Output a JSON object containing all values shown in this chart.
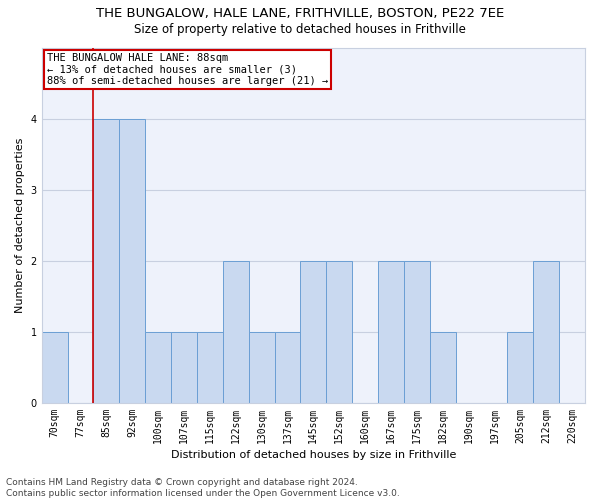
{
  "title1": "THE BUNGALOW, HALE LANE, FRITHVILLE, BOSTON, PE22 7EE",
  "title2": "Size of property relative to detached houses in Frithville",
  "xlabel": "Distribution of detached houses by size in Frithville",
  "ylabel": "Number of detached properties",
  "bins": [
    "70sqm",
    "77sqm",
    "85sqm",
    "92sqm",
    "100sqm",
    "107sqm",
    "115sqm",
    "122sqm",
    "130sqm",
    "137sqm",
    "145sqm",
    "152sqm",
    "160sqm",
    "167sqm",
    "175sqm",
    "182sqm",
    "190sqm",
    "197sqm",
    "205sqm",
    "212sqm",
    "220sqm"
  ],
  "values": [
    1,
    0,
    4,
    4,
    1,
    1,
    1,
    2,
    1,
    1,
    2,
    2,
    0,
    2,
    2,
    1,
    0,
    0,
    1,
    2,
    0
  ],
  "bar_color": "#c9d9f0",
  "bar_edge_color": "#6b9fd4",
  "highlight_line_color": "#cc0000",
  "highlight_bin_index": 2,
  "annotation_text": "THE BUNGALOW HALE LANE: 88sqm\n← 13% of detached houses are smaller (3)\n88% of semi-detached houses are larger (21) →",
  "annotation_box_color": "#ffffff",
  "annotation_box_edge_color": "#cc0000",
  "ylim": [
    0,
    5
  ],
  "yticks": [
    0,
    1,
    2,
    3,
    4,
    5
  ],
  "grid_color": "#c8d0e0",
  "bg_color": "#eef2fb",
  "footnote": "Contains HM Land Registry data © Crown copyright and database right 2024.\nContains public sector information licensed under the Open Government Licence v3.0.",
  "title1_fontsize": 9.5,
  "title2_fontsize": 8.5,
  "xlabel_fontsize": 8,
  "ylabel_fontsize": 8,
  "tick_fontsize": 7,
  "annot_fontsize": 7.5,
  "footnote_fontsize": 6.5
}
